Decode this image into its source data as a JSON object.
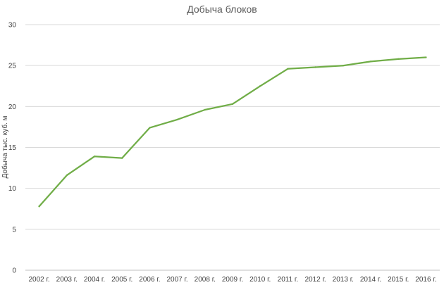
{
  "chart_data": {
    "type": "line",
    "title": "Добыча блоков",
    "xlabel": "",
    "ylabel": "Добыча тыс. куб. м",
    "categories": [
      "2002 г.",
      "2003 г.",
      "2004 г.",
      "2005 г.",
      "2006 г.",
      "2007 г.",
      "2008 г.",
      "2009 г.",
      "2010 г.",
      "2011 г.",
      "2012 г.",
      "2013 г.",
      "2014 г.",
      "2015 г.",
      "2016 г."
    ],
    "series": [
      {
        "color": "#70ad47",
        "values": [
          7.8,
          11.6,
          13.9,
          13.7,
          17.4,
          18.4,
          19.6,
          20.3,
          22.5,
          24.6,
          24.8,
          25.0,
          25.5,
          25.8,
          26.0
        ]
      }
    ],
    "ylim": [
      0,
      30
    ],
    "yticks": [
      0,
      5,
      10,
      15,
      20,
      25,
      30
    ],
    "grid": true,
    "legend": "none"
  }
}
